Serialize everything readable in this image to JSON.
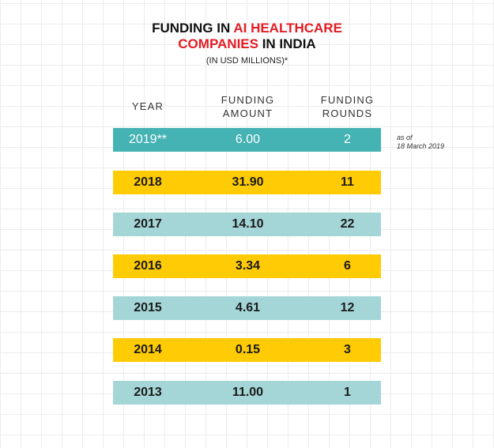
{
  "title": {
    "line1_a": "FUNDING IN ",
    "line1_b": "AI HEALTHCARE",
    "line2_a": "COMPANIES",
    "line2_b": " IN INDIA"
  },
  "subtitle": "(IN USD MILLIONS)*",
  "headers": {
    "year": "YEAR",
    "amount_1": "FUNDING",
    "amount_2": "AMOUNT",
    "rounds_1": "FUNDING",
    "rounds_2": "ROUNDS"
  },
  "note": {
    "line1": "as of",
    "line2": "18 March 2019"
  },
  "colors": {
    "highlight_red": "#e31b23",
    "teal_dark": "#45b2b4",
    "teal_light": "#a5d6d7",
    "yellow": "#ffcb05"
  },
  "chart_data": {
    "type": "table",
    "title": "FUNDING IN AI HEALTHCARE COMPANIES IN INDIA",
    "subtitle": "(IN USD MILLIONS)*",
    "columns": [
      "YEAR",
      "FUNDING AMOUNT",
      "FUNDING ROUNDS"
    ],
    "rows": [
      {
        "year": "2019**",
        "amount": "6.00",
        "rounds": "2",
        "style": "teal_dark"
      },
      {
        "year": "2018",
        "amount": "31.90",
        "rounds": "11",
        "style": "yellow"
      },
      {
        "year": "2017",
        "amount": "14.10",
        "rounds": "22",
        "style": "teal_light"
      },
      {
        "year": "2016",
        "amount": "3.34",
        "rounds": "6",
        "style": "yellow"
      },
      {
        "year": "2015",
        "amount": "4.61",
        "rounds": "12",
        "style": "teal_light"
      },
      {
        "year": "2014",
        "amount": "0.15",
        "rounds": "3",
        "style": "yellow"
      },
      {
        "year": "2013",
        "amount": "11.00",
        "rounds": "1",
        "style": "teal_light"
      }
    ]
  }
}
